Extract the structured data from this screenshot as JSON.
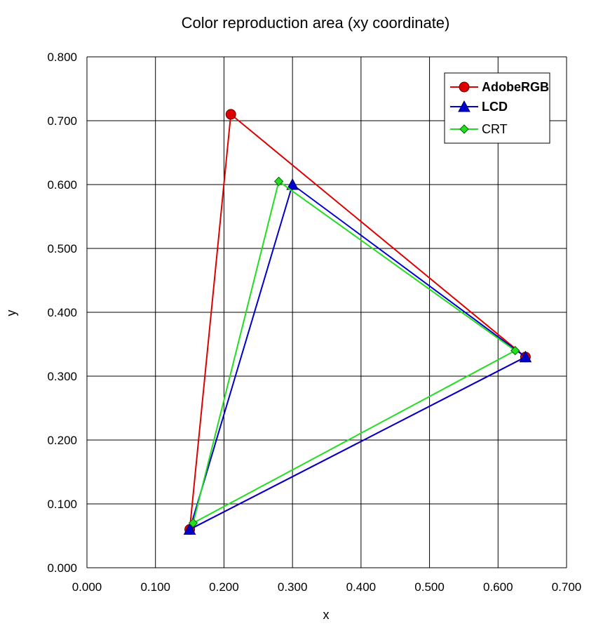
{
  "chart_data": {
    "type": "scatter",
    "title": "Color reproduction area (xy coordinate)",
    "xlabel": "x",
    "ylabel": "y",
    "xlim": [
      0.0,
      0.7
    ],
    "ylim": [
      0.0,
      0.8
    ],
    "x_ticks": [
      "0.000",
      "0.100",
      "0.200",
      "0.300",
      "0.400",
      "0.500",
      "0.600",
      "0.700"
    ],
    "y_ticks": [
      "0.000",
      "0.100",
      "0.200",
      "0.300",
      "0.400",
      "0.500",
      "0.600",
      "0.700",
      "0.800"
    ],
    "grid": true,
    "legend_position": "top-right",
    "series": [
      {
        "name": "AdobeRGB",
        "color": "#dd0000",
        "marker": "circle",
        "points": [
          [
            0.21,
            0.71
          ],
          [
            0.64,
            0.33
          ],
          [
            0.15,
            0.06
          ],
          [
            0.21,
            0.71
          ]
        ]
      },
      {
        "name": "LCD",
        "color": "#0000cc",
        "marker": "triangle",
        "points": [
          [
            0.3,
            0.6
          ],
          [
            0.64,
            0.33
          ],
          [
            0.15,
            0.06
          ],
          [
            0.3,
            0.6
          ]
        ]
      },
      {
        "name": "CRT",
        "color": "#22dd22",
        "marker": "diamond",
        "points": [
          [
            0.28,
            0.605
          ],
          [
            0.625,
            0.34
          ],
          [
            0.155,
            0.07
          ],
          [
            0.28,
            0.605
          ]
        ]
      }
    ]
  }
}
